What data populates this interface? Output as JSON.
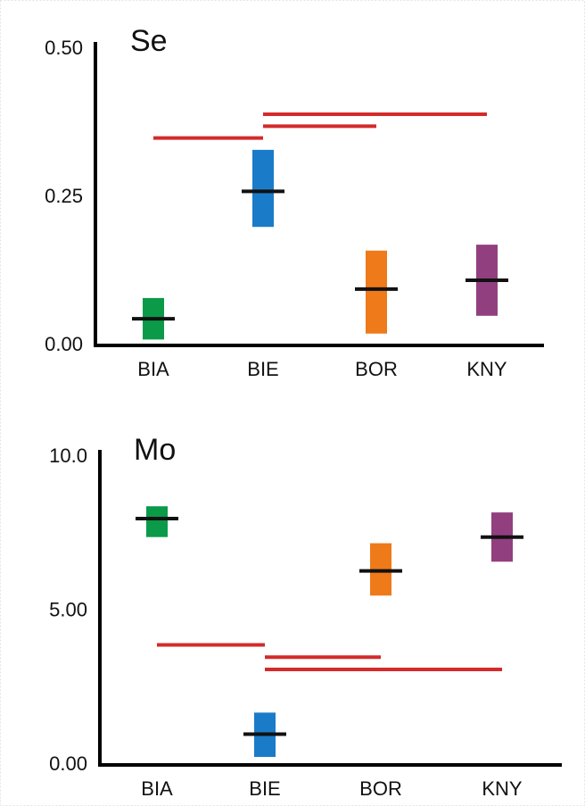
{
  "chart_data": [
    {
      "type": "floatingbar",
      "title": "Se",
      "categories": [
        "BIA",
        "BIE",
        "BOR",
        "KNY"
      ],
      "colors": [
        "#0a9a48",
        "#1a7cc9",
        "#ee7a1a",
        "#923f80"
      ],
      "low": [
        0.01,
        0.2,
        0.02,
        0.05
      ],
      "high": [
        0.08,
        0.33,
        0.16,
        0.17
      ],
      "median": [
        0.045,
        0.26,
        0.095,
        0.11
      ],
      "ylim": [
        0,
        0.5
      ],
      "yticks": [
        {
          "value": 0,
          "label": "0.00"
        },
        {
          "value": 0.25,
          "label": "0.25"
        },
        {
          "value": 0.5,
          "label": "0.50"
        }
      ],
      "comparison_color": "#d42a2a",
      "comparisons": [
        {
          "from": "BIA",
          "to": "BIE",
          "value": 0.35
        },
        {
          "from": "BIE",
          "to": "BOR",
          "value": 0.37
        },
        {
          "from": "BIE",
          "to": "KNY",
          "value": 0.39
        }
      ]
    },
    {
      "type": "floatingbar",
      "title": "Mo",
      "categories": [
        "BIA",
        "BIE",
        "BOR",
        "KNY"
      ],
      "colors": [
        "#0a9a48",
        "#1a7cc9",
        "#ee7a1a",
        "#923f80"
      ],
      "low": [
        7.4,
        0.26,
        5.5,
        6.6
      ],
      "high": [
        8.4,
        1.7,
        7.2,
        8.2
      ],
      "median": [
        8.0,
        1.0,
        6.3,
        7.4
      ],
      "ylim": [
        0,
        10
      ],
      "yticks": [
        {
          "value": 0,
          "label": "0.00"
        },
        {
          "value": 5,
          "label": "5.00"
        },
        {
          "value": 10,
          "label": "10.0"
        }
      ],
      "comparison_color": "#d42a2a",
      "comparisons": [
        {
          "from": "BIA",
          "to": "BIE",
          "value": 3.9
        },
        {
          "from": "BIE",
          "to": "BOR",
          "value": 3.5
        },
        {
          "from": "BIE",
          "to": "KNY",
          "value": 3.1
        }
      ]
    }
  ]
}
